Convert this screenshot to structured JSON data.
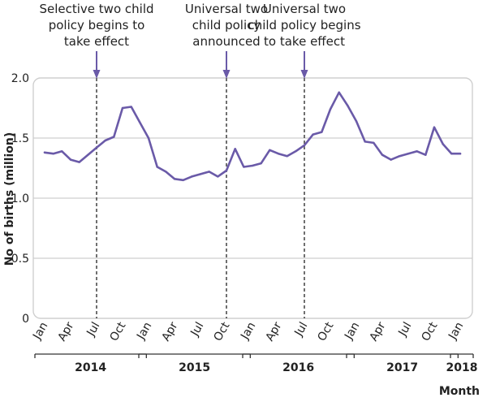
{
  "chart_data": {
    "type": "line",
    "ylabel": "No of births (million)",
    "xlabel": "Month",
    "ylim": [
      0,
      2.0
    ],
    "yticks": [
      "0",
      "0.5",
      "1.0",
      "1.5",
      "2.0"
    ],
    "ytick_values": [
      0,
      0.5,
      1.0,
      1.5,
      2.0
    ],
    "grid": "horizontal",
    "x_tick_labels": [
      "Jan",
      "Apr",
      "Jul",
      "Oct",
      "Jan",
      "Apr",
      "Jul",
      "Oct",
      "Jan",
      "Apr",
      "Jul",
      "Oct",
      "Jan",
      "Apr",
      "Jul",
      "Oct",
      "Jan"
    ],
    "x_tick_months": [
      0,
      3,
      6,
      9,
      12,
      15,
      18,
      21,
      24,
      27,
      30,
      33,
      36,
      39,
      42,
      45,
      48
    ],
    "x_range_months": [
      0,
      48
    ],
    "years": [
      {
        "label": "2014",
        "start": 0,
        "end": 11
      },
      {
        "label": "2015",
        "start": 12,
        "end": 23
      },
      {
        "label": "2016",
        "start": 24,
        "end": 35
      },
      {
        "label": "2017",
        "start": 36,
        "end": 47
      },
      {
        "label": "2018",
        "start": 48,
        "end": 48
      }
    ],
    "series": [
      {
        "color": "#6a5aa8",
        "x": [
          0,
          1,
          2,
          3,
          4,
          5,
          6,
          7,
          8,
          9,
          10,
          11,
          12,
          13,
          14,
          15,
          16,
          17,
          18,
          19,
          20,
          21,
          22,
          23,
          24,
          25,
          26,
          27,
          28,
          29,
          30,
          31,
          32,
          33,
          34,
          35,
          36,
          37,
          38,
          39,
          40,
          41,
          42,
          43,
          44,
          45,
          46,
          47,
          48
        ],
        "values": [
          1.38,
          1.37,
          1.39,
          1.32,
          1.3,
          1.36,
          1.42,
          1.48,
          1.51,
          1.75,
          1.76,
          1.63,
          1.5,
          1.26,
          1.22,
          1.16,
          1.15,
          1.18,
          1.2,
          1.22,
          1.18,
          1.23,
          1.41,
          1.26,
          1.27,
          1.29,
          1.4,
          1.37,
          1.35,
          1.39,
          1.44,
          1.53,
          1.55,
          1.74,
          1.88,
          1.77,
          1.64,
          1.47,
          1.46,
          1.36,
          1.32,
          1.35,
          1.37,
          1.39,
          1.36,
          1.59,
          1.45,
          1.37,
          1.37
        ]
      }
    ],
    "annotations": [
      {
        "month": 6,
        "lines": [
          "Selective two child",
          "policy begins to",
          "take effect"
        ]
      },
      {
        "month": 21,
        "lines": [
          "Universal two",
          "child policy",
          "announced"
        ]
      },
      {
        "month": 30,
        "lines": [
          "Universal two",
          "child policy begins",
          "to take effect"
        ]
      }
    ],
    "colors": {
      "line": "#6a5aa8",
      "arrow": "#6a5aa8",
      "frame": "#cfcfcf",
      "grid": "#cfcfcf",
      "text": "#222222"
    }
  }
}
